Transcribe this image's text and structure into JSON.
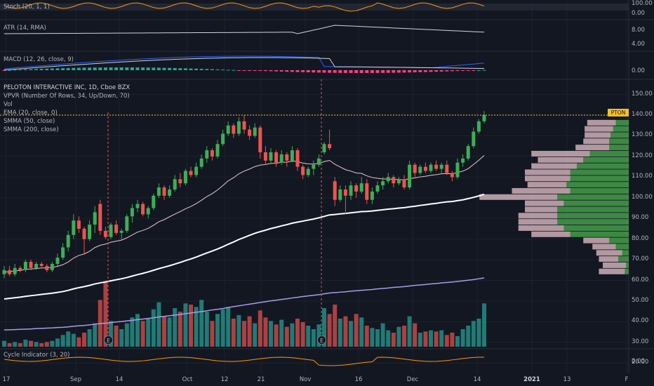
{
  "symbol_badge": "PTON",
  "main_legend": {
    "title": "PELOTON INTERACTIVE INC, 1D, Cboe BZX",
    "lines": [
      "VPVR (Number Of Rows, 34, Up/Down, 70)",
      "Vol",
      "EMA (20, close, 0)",
      "SMMA (50, close)",
      "SMMA (200, close)"
    ]
  },
  "panes": {
    "stoch": {
      "label": "Stoch (20, 1, 1)",
      "ticks": [
        "100.00",
        "0.00"
      ]
    },
    "atr": {
      "label": "ATR (14, RMA)",
      "ticks": [
        "8.00",
        "4.00"
      ]
    },
    "macd": {
      "label": "MACD (12, 26, close, 9)",
      "ticks": [
        "0.00"
      ]
    },
    "cycle": {
      "label": "Cycle Indicator (3, 20)",
      "ticks": [
        "0.00"
      ]
    }
  },
  "price_ticks": [
    "150.00",
    "140.00",
    "130.00",
    "120.00",
    "110.00",
    "100.00",
    "90.00",
    "80.00",
    "70.00",
    "60.00",
    "50.00",
    "40.00",
    "30.00",
    "20.00"
  ],
  "x_ticks": [
    {
      "label": "17",
      "bold": false
    },
    {
      "label": "Sep",
      "bold": false
    },
    {
      "label": "14",
      "bold": false
    },
    {
      "label": "Oct",
      "bold": false
    },
    {
      "label": "12",
      "bold": false
    },
    {
      "label": "21",
      "bold": false
    },
    {
      "label": "Nov",
      "bold": false
    },
    {
      "label": "16",
      "bold": false
    },
    {
      "label": "Dec",
      "bold": false
    },
    {
      "label": "14",
      "bold": false
    },
    {
      "label": "2021",
      "bold": true
    },
    {
      "label": "13",
      "bold": false
    },
    {
      "label": "F",
      "bold": false
    }
  ],
  "events": [
    {
      "label": "E",
      "date": "2020-09-10"
    },
    {
      "label": "E",
      "date": "2020-11-05"
    }
  ],
  "colors": {
    "background": "#131722",
    "up": "#26a69a",
    "candle_up": "#3dae55",
    "down": "#ef5350",
    "ema": "#e8c9cf",
    "smma50": "#ffffff",
    "smma200": "#a99de8",
    "badge": "#f7c025",
    "vpvr_up": "#4caf50",
    "vpvr_down": "#e8c4cc"
  },
  "chart_data": {
    "type": "candlestick",
    "x_range": [
      "2020-08-17",
      "2021-02-01"
    ],
    "price_range": [
      15,
      157
    ],
    "last_price": 140.0,
    "candles": [
      {
        "date": "2020-08-17",
        "o": 63,
        "h": 67,
        "l": 61,
        "c": 65
      },
      {
        "date": "2020-08-18",
        "o": 65,
        "h": 67,
        "l": 62,
        "c": 63
      },
      {
        "date": "2020-08-19",
        "o": 63,
        "h": 68,
        "l": 62,
        "c": 66
      },
      {
        "date": "2020-08-20",
        "o": 66,
        "h": 67,
        "l": 64,
        "c": 65
      },
      {
        "date": "2020-08-21",
        "o": 65,
        "h": 70,
        "l": 64,
        "c": 69
      },
      {
        "date": "2020-08-24",
        "o": 69,
        "h": 70,
        "l": 65,
        "c": 66
      },
      {
        "date": "2020-08-25",
        "o": 66,
        "h": 69,
        "l": 65,
        "c": 68
      },
      {
        "date": "2020-08-26",
        "o": 68,
        "h": 69,
        "l": 66,
        "c": 67
      },
      {
        "date": "2020-08-27",
        "o": 67,
        "h": 68,
        "l": 64,
        "c": 65
      },
      {
        "date": "2020-08-28",
        "o": 65,
        "h": 69,
        "l": 64,
        "c": 68
      },
      {
        "date": "2020-08-31",
        "o": 68,
        "h": 73,
        "l": 67,
        "c": 71
      },
      {
        "date": "2020-09-01",
        "o": 71,
        "h": 78,
        "l": 70,
        "c": 76
      },
      {
        "date": "2020-09-02",
        "o": 76,
        "h": 84,
        "l": 74,
        "c": 82
      },
      {
        "date": "2020-09-03",
        "o": 82,
        "h": 92,
        "l": 80,
        "c": 89
      },
      {
        "date": "2020-09-04",
        "o": 89,
        "h": 91,
        "l": 83,
        "c": 85
      },
      {
        "date": "2020-09-08",
        "o": 85,
        "h": 86,
        "l": 73,
        "c": 80
      },
      {
        "date": "2020-09-09",
        "o": 80,
        "h": 89,
        "l": 79,
        "c": 87
      },
      {
        "date": "2020-09-10",
        "o": 87,
        "h": 96,
        "l": 83,
        "c": 93
      },
      {
        "date": "2020-09-11",
        "o": 97,
        "h": 99,
        "l": 82,
        "c": 84
      },
      {
        "date": "2020-09-14",
        "o": 84,
        "h": 86,
        "l": 80,
        "c": 81
      },
      {
        "date": "2020-09-15",
        "o": 81,
        "h": 88,
        "l": 80,
        "c": 87
      },
      {
        "date": "2020-09-16",
        "o": 87,
        "h": 89,
        "l": 82,
        "c": 83
      },
      {
        "date": "2020-09-17",
        "o": 83,
        "h": 85,
        "l": 80,
        "c": 84
      },
      {
        "date": "2020-09-18",
        "o": 84,
        "h": 92,
        "l": 83,
        "c": 91
      },
      {
        "date": "2020-09-21",
        "o": 91,
        "h": 97,
        "l": 88,
        "c": 95
      },
      {
        "date": "2020-09-22",
        "o": 95,
        "h": 99,
        "l": 93,
        "c": 97
      },
      {
        "date": "2020-09-23",
        "o": 97,
        "h": 98,
        "l": 91,
        "c": 92
      },
      {
        "date": "2020-09-24",
        "o": 92,
        "h": 96,
        "l": 90,
        "c": 95
      },
      {
        "date": "2020-09-25",
        "o": 95,
        "h": 102,
        "l": 94,
        "c": 101
      },
      {
        "date": "2020-09-28",
        "o": 101,
        "h": 107,
        "l": 100,
        "c": 105
      },
      {
        "date": "2020-09-29",
        "o": 105,
        "h": 106,
        "l": 99,
        "c": 101
      },
      {
        "date": "2020-09-30",
        "o": 101,
        "h": 106,
        "l": 100,
        "c": 104
      },
      {
        "date": "2020-10-01",
        "o": 104,
        "h": 111,
        "l": 103,
        "c": 109
      },
      {
        "date": "2020-10-02",
        "o": 109,
        "h": 112,
        "l": 105,
        "c": 107
      },
      {
        "date": "2020-10-05",
        "o": 107,
        "h": 114,
        "l": 106,
        "c": 113
      },
      {
        "date": "2020-10-06",
        "o": 113,
        "h": 115,
        "l": 110,
        "c": 111
      },
      {
        "date": "2020-10-07",
        "o": 111,
        "h": 117,
        "l": 110,
        "c": 115
      },
      {
        "date": "2020-10-08",
        "o": 115,
        "h": 121,
        "l": 114,
        "c": 119
      },
      {
        "date": "2020-10-09",
        "o": 119,
        "h": 125,
        "l": 117,
        "c": 123
      },
      {
        "date": "2020-10-12",
        "o": 123,
        "h": 124,
        "l": 118,
        "c": 120
      },
      {
        "date": "2020-10-13",
        "o": 120,
        "h": 128,
        "l": 119,
        "c": 126
      },
      {
        "date": "2020-10-14",
        "o": 126,
        "h": 133,
        "l": 125,
        "c": 131
      },
      {
        "date": "2020-10-15",
        "o": 131,
        "h": 137,
        "l": 130,
        "c": 135
      },
      {
        "date": "2020-10-16",
        "o": 135,
        "h": 136,
        "l": 129,
        "c": 131
      },
      {
        "date": "2020-10-19",
        "o": 131,
        "h": 139,
        "l": 130,
        "c": 137
      },
      {
        "date": "2020-10-20",
        "o": 137,
        "h": 140,
        "l": 131,
        "c": 133
      },
      {
        "date": "2020-10-21",
        "o": 133,
        "h": 135,
        "l": 128,
        "c": 130
      },
      {
        "date": "2020-10-22",
        "o": 130,
        "h": 136,
        "l": 129,
        "c": 134
      },
      {
        "date": "2020-10-23",
        "o": 134,
        "h": 135,
        "l": 119,
        "c": 122
      },
      {
        "date": "2020-10-26",
        "o": 122,
        "h": 125,
        "l": 116,
        "c": 118
      },
      {
        "date": "2020-10-27",
        "o": 118,
        "h": 124,
        "l": 117,
        "c": 122
      },
      {
        "date": "2020-10-28",
        "o": 122,
        "h": 123,
        "l": 115,
        "c": 117
      },
      {
        "date": "2020-10-29",
        "o": 117,
        "h": 123,
        "l": 116,
        "c": 121
      },
      {
        "date": "2020-10-30",
        "o": 121,
        "h": 122,
        "l": 115,
        "c": 118
      },
      {
        "date": "2020-11-02",
        "o": 118,
        "h": 125,
        "l": 117,
        "c": 123
      },
      {
        "date": "2020-11-03",
        "o": 123,
        "h": 124,
        "l": 113,
        "c": 115
      },
      {
        "date": "2020-11-04",
        "o": 115,
        "h": 116,
        "l": 109,
        "c": 111
      },
      {
        "date": "2020-11-05",
        "o": 111,
        "h": 115,
        "l": 110,
        "c": 114
      },
      {
        "date": "2020-11-06",
        "o": 114,
        "h": 118,
        "l": 111,
        "c": 116
      },
      {
        "date": "2020-11-09",
        "o": 116,
        "h": 121,
        "l": 115,
        "c": 119
      },
      {
        "date": "2020-11-10",
        "o": 122,
        "h": 127,
        "l": 121,
        "c": 126
      },
      {
        "date": "2020-11-11",
        "o": 126,
        "h": 133,
        "l": 123,
        "c": 124
      },
      {
        "date": "2020-11-12",
        "o": 108,
        "h": 110,
        "l": 96,
        "c": 99
      },
      {
        "date": "2020-11-13",
        "o": 99,
        "h": 106,
        "l": 98,
        "c": 104
      },
      {
        "date": "2020-11-16",
        "o": 104,
        "h": 106,
        "l": 92,
        "c": 101
      },
      {
        "date": "2020-11-17",
        "o": 101,
        "h": 108,
        "l": 99,
        "c": 106
      },
      {
        "date": "2020-11-18",
        "o": 106,
        "h": 107,
        "l": 100,
        "c": 103
      },
      {
        "date": "2020-11-19",
        "o": 103,
        "h": 110,
        "l": 102,
        "c": 107
      },
      {
        "date": "2020-11-20",
        "o": 107,
        "h": 109,
        "l": 97,
        "c": 99
      },
      {
        "date": "2020-11-23",
        "o": 99,
        "h": 105,
        "l": 97,
        "c": 103
      },
      {
        "date": "2020-11-24",
        "o": 103,
        "h": 108,
        "l": 102,
        "c": 106
      },
      {
        "date": "2020-11-25",
        "o": 106,
        "h": 110,
        "l": 104,
        "c": 108
      },
      {
        "date": "2020-11-27",
        "o": 108,
        "h": 112,
        "l": 107,
        "c": 110
      },
      {
        "date": "2020-11-30",
        "o": 110,
        "h": 111,
        "l": 105,
        "c": 107
      },
      {
        "date": "2020-12-01",
        "o": 107,
        "h": 110,
        "l": 106,
        "c": 109
      },
      {
        "date": "2020-12-02",
        "o": 109,
        "h": 111,
        "l": 104,
        "c": 105
      },
      {
        "date": "2020-12-03",
        "o": 105,
        "h": 118,
        "l": 104,
        "c": 116
      },
      {
        "date": "2020-12-04",
        "o": 116,
        "h": 117,
        "l": 110,
        "c": 112
      },
      {
        "date": "2020-12-07",
        "o": 112,
        "h": 116,
        "l": 111,
        "c": 115
      },
      {
        "date": "2020-12-08",
        "o": 115,
        "h": 117,
        "l": 112,
        "c": 113
      },
      {
        "date": "2020-12-09",
        "o": 113,
        "h": 117,
        "l": 112,
        "c": 116
      },
      {
        "date": "2020-12-10",
        "o": 116,
        "h": 118,
        "l": 113,
        "c": 114
      },
      {
        "date": "2020-12-11",
        "o": 114,
        "h": 117,
        "l": 112,
        "c": 116
      },
      {
        "date": "2020-12-14",
        "o": 116,
        "h": 118,
        "l": 111,
        "c": 112
      },
      {
        "date": "2020-12-15",
        "o": 112,
        "h": 113,
        "l": 108,
        "c": 110
      },
      {
        "date": "2020-12-16",
        "o": 110,
        "h": 119,
        "l": 109,
        "c": 117
      },
      {
        "date": "2020-12-17",
        "o": 117,
        "h": 121,
        "l": 115,
        "c": 119
      },
      {
        "date": "2020-12-18",
        "o": 119,
        "h": 126,
        "l": 118,
        "c": 125
      },
      {
        "date": "2020-12-21",
        "o": 125,
        "h": 134,
        "l": 124,
        "c": 132
      },
      {
        "date": "2020-12-22",
        "o": 132,
        "h": 138,
        "l": 131,
        "c": 137
      },
      {
        "date": "2020-12-23",
        "o": 137,
        "h": 142,
        "l": 136,
        "c": 140
      }
    ],
    "volume": [
      5,
      3,
      4,
      3,
      6,
      5,
      4,
      3,
      4,
      5,
      7,
      10,
      13,
      11,
      8,
      12,
      15,
      20,
      40,
      55,
      22,
      18,
      15,
      20,
      25,
      28,
      22,
      24,
      32,
      38,
      26,
      25,
      33,
      30,
      37,
      36,
      34,
      40,
      30,
      22,
      28,
      32,
      34,
      24,
      27,
      22,
      26,
      20,
      31,
      25,
      22,
      19,
      23,
      17,
      20,
      24,
      21,
      18,
      15,
      19,
      33,
      28,
      36,
      24,
      26,
      22,
      28,
      25,
      18,
      16,
      15,
      20,
      14,
      12,
      17,
      18,
      26,
      20,
      12,
      13,
      14,
      13,
      14,
      10,
      12,
      9,
      15,
      18,
      22,
      24,
      37
    ],
    "volume_range": [
      0,
      60
    ],
    "ema20": [
      64,
      64.2,
      64.6,
      64.8,
      65.4,
      65.5,
      65.8,
      66,
      66.1,
      66.3,
      66.8,
      67.6,
      68.9,
      70.8,
      72.1,
      72.8,
      74.1,
      75.9,
      77,
      77.6,
      78.5,
      79,
      79.5,
      80.6,
      82,
      83.4,
      84.2,
      85.2,
      86.7,
      88.4,
      89.4,
      90.8,
      92.1,
      93.3,
      94.7,
      95.8,
      97.2,
      98.8,
      100.6,
      102,
      103.8,
      105.9,
      108.2,
      109.7,
      111.6,
      112.9,
      113.9,
      115.1,
      115.8,
      116.1,
      116.6,
      116.7,
      117.2,
      117.2,
      117.8,
      117.5,
      116.8,
      116.4,
      116.3,
      116.6,
      117.5,
      118.1,
      116.2,
      114.9,
      113.6,
      112.9,
      112,
      111.8,
      110.6,
      109.8,
      109.4,
      109.1,
      109.1,
      108.9,
      108.9,
      108.6,
      109.3,
      109.6,
      110.1,
      110.4,
      110.9,
      111.2,
      111.6,
      111.7,
      111.6,
      112.2,
      112.9,
      114.1,
      116.1,
      118.2,
      120.5
    ],
    "smma50": [
      51,
      51.3,
      51.6,
      51.9,
      52.3,
      52.6,
      52.9,
      53.2,
      53.5,
      53.8,
      54.2,
      54.6,
      55.2,
      55.9,
      56.5,
      57,
      57.6,
      58.3,
      58.8,
      59.3,
      59.8,
      60.3,
      60.8,
      61.4,
      62.1,
      62.8,
      63.4,
      64.1,
      64.9,
      65.7,
      66.4,
      67.1,
      67.9,
      68.7,
      69.6,
      70.4,
      71.3,
      72.3,
      73.3,
      74.2,
      75.2,
      76.3,
      77.5,
      78.6,
      79.8,
      80.8,
      81.8,
      82.8,
      83.6,
      84.3,
      85.1,
      85.7,
      86.4,
      87,
      87.7,
      88.2,
      88.7,
      89.2,
      89.7,
      90.3,
      91,
      91.7,
      91.9,
      92.2,
      92.4,
      92.7,
      93,
      93.3,
      93.4,
      93.6,
      93.9,
      94.2,
      94.5,
      94.7,
      95,
      95.2,
      95.6,
      95.9,
      96.3,
      96.6,
      97,
      97.3,
      97.7,
      98,
      98.2,
      98.6,
      99,
      99.6,
      100.2,
      100.9,
      101.7
    ],
    "smma200": [
      36,
      36.1,
      36.2,
      36.3,
      36.4,
      36.5,
      36.7,
      36.8,
      36.9,
      37,
      37.2,
      37.3,
      37.5,
      37.8,
      38,
      38.2,
      38.5,
      38.8,
      39.1,
      39.3,
      39.6,
      39.9,
      40.1,
      40.4,
      40.7,
      41,
      41.3,
      41.6,
      41.9,
      42.3,
      42.6,
      42.9,
      43.2,
      43.5,
      43.9,
      44.2,
      44.6,
      44.9,
      45.3,
      45.7,
      46,
      46.4,
      46.9,
      47.3,
      47.7,
      48.1,
      48.5,
      48.9,
      49.3,
      49.7,
      50.1,
      50.4,
      50.8,
      51.1,
      51.5,
      51.8,
      52.2,
      52.5,
      52.8,
      53.1,
      53.5,
      53.9,
      54.1,
      54.3,
      54.5,
      54.8,
      55,
      55.2,
      55.4,
      55.6,
      55.9,
      56.1,
      56.3,
      56.6,
      56.8,
      57,
      57.3,
      57.6,
      57.8,
      58,
      58.3,
      58.5,
      58.8,
      59,
      59.2,
      59.5,
      59.8,
      60.1,
      60.4,
      60.8,
      61.2
    ],
    "vpvr": {
      "bins": [
        [
          136,
          0.1,
          0.22
        ],
        [
          133,
          0.12,
          0.22
        ],
        [
          130,
          0.14,
          0.2
        ],
        [
          127,
          0.15,
          0.2
        ],
        [
          124,
          0.15,
          0.26
        ],
        [
          121,
          0.3,
          0.45
        ],
        [
          118,
          0.35,
          0.35
        ],
        [
          115,
          0.4,
          0.35
        ],
        [
          112,
          0.45,
          0.35
        ],
        [
          109,
          0.45,
          0.35
        ],
        [
          106,
          0.48,
          0.3
        ],
        [
          103,
          0.45,
          0.45
        ],
        [
          100,
          0.55,
          0.6
        ],
        [
          97,
          0.5,
          0.3
        ],
        [
          94,
          0.55,
          0.25
        ],
        [
          91,
          0.55,
          0.3
        ],
        [
          88,
          0.55,
          0.3
        ],
        [
          85,
          0.5,
          0.35
        ],
        [
          82,
          0.45,
          0.3
        ],
        [
          79,
          0.15,
          0.2
        ],
        [
          76,
          0.1,
          0.18
        ],
        [
          73,
          0.05,
          0.2
        ],
        [
          70,
          0.08,
          0.15
        ],
        [
          67,
          0.02,
          0.18
        ],
        [
          64,
          0.03,
          0.2
        ]
      ],
      "max_width_fraction": 1
    }
  }
}
